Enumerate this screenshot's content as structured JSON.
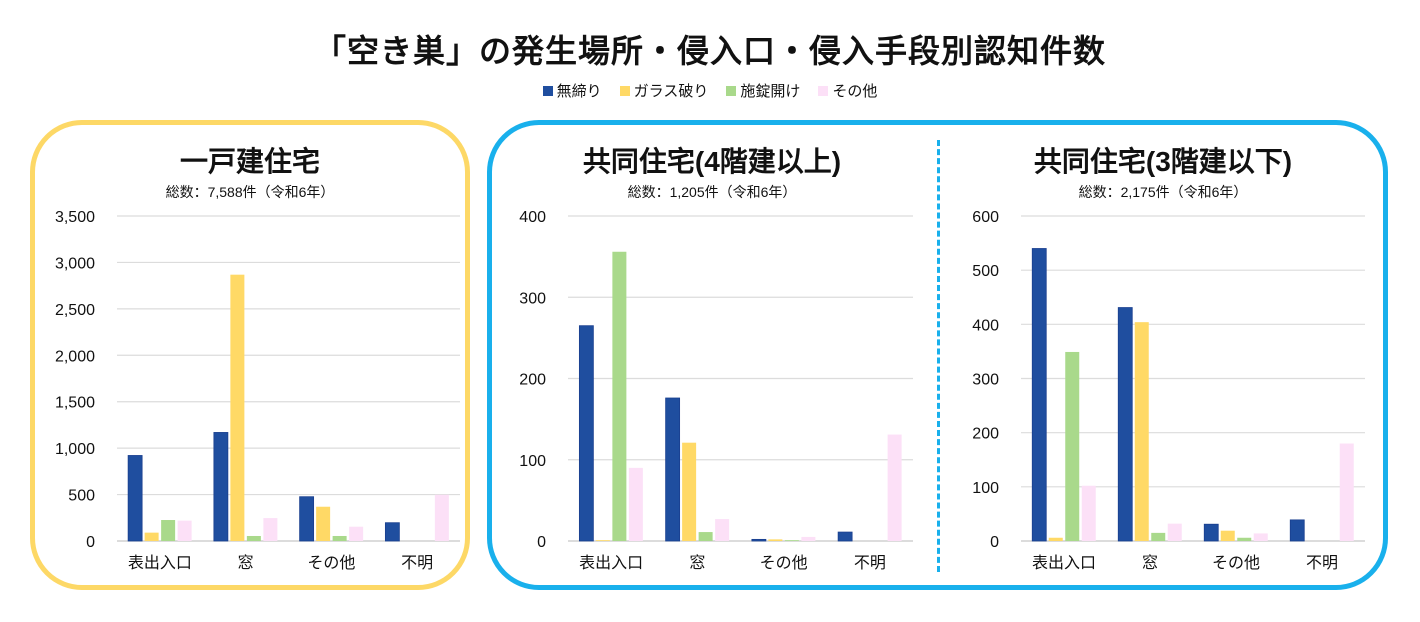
{
  "title": "「空き巣」の発生場所・侵入口・侵入手段別認知件数",
  "legend": [
    {
      "name": "無締り",
      "color": "#1f4e9f"
    },
    {
      "name": "ガラス破り",
      "color": "#ffd966"
    },
    {
      "name": "施錠開け",
      "color": "#a9d98b"
    },
    {
      "name": "その他",
      "color": "#fce0f7"
    }
  ],
  "frame_colors": {
    "detached": "#fdd866",
    "apartment": "#19b0ec"
  },
  "chart_data": [
    {
      "type": "bar",
      "title": "一戸建住宅",
      "subtitle": "総数：7,588件（令和6年）",
      "categories": [
        "表出入口",
        "窓",
        "その他",
        "不明"
      ],
      "ylim": [
        0,
        3500
      ],
      "yticks": [
        0,
        500,
        1000,
        1500,
        2000,
        2500,
        3000,
        3500
      ],
      "ytick_labels": [
        "0",
        "500",
        "1,000",
        "1,500",
        "2,000",
        "2,500",
        "3,000",
        "3,500"
      ],
      "grid": true,
      "series": [
        {
          "name": "無締り",
          "values": [
            921,
            1169,
            477,
            197
          ]
        },
        {
          "name": "ガラス破り",
          "values": [
            90,
            2868,
            369,
            0
          ]
        },
        {
          "name": "施錠開け",
          "values": [
            226,
            54,
            54,
            0
          ]
        },
        {
          "name": "その他",
          "values": [
            219,
            247,
            154,
            498
          ]
        }
      ]
    },
    {
      "type": "bar",
      "title": "共同住宅(4階建以上)",
      "subtitle": "総数：1,205件（令和6年）",
      "categories": [
        "表出入口",
        "窓",
        "その他",
        "不明"
      ],
      "ylim": [
        0,
        400
      ],
      "yticks": [
        0,
        100,
        200,
        300,
        400
      ],
      "ytick_labels": [
        "0",
        "100",
        "200",
        "300",
        "400"
      ],
      "grid": true,
      "series": [
        {
          "name": "無締り",
          "values": [
            265,
            176,
            2,
            11
          ]
        },
        {
          "name": "ガラス破り",
          "values": [
            1,
            121,
            2,
            0
          ]
        },
        {
          "name": "施錠開け",
          "values": [
            356,
            11,
            1,
            0
          ]
        },
        {
          "name": "その他",
          "values": [
            90,
            27,
            5,
            131
          ]
        }
      ]
    },
    {
      "type": "bar",
      "title": "共同住宅(3階建以下)",
      "subtitle": "総数：2,175件（令和6年）",
      "categories": [
        "表出入口",
        "窓",
        "その他",
        "不明"
      ],
      "ylim": [
        0,
        600
      ],
      "yticks": [
        0,
        100,
        200,
        300,
        400,
        500,
        600
      ],
      "ytick_labels": [
        "0",
        "100",
        "200",
        "300",
        "400",
        "500",
        "600"
      ],
      "grid": true,
      "series": [
        {
          "name": "無締り",
          "values": [
            540,
            431,
            31,
            39
          ]
        },
        {
          "name": "ガラス破り",
          "values": [
            6,
            404,
            19,
            0
          ]
        },
        {
          "name": "施錠開け",
          "values": [
            349,
            15,
            6,
            0
          ]
        },
        {
          "name": "その他",
          "values": [
            102,
            32,
            14,
            180
          ]
        }
      ]
    }
  ]
}
